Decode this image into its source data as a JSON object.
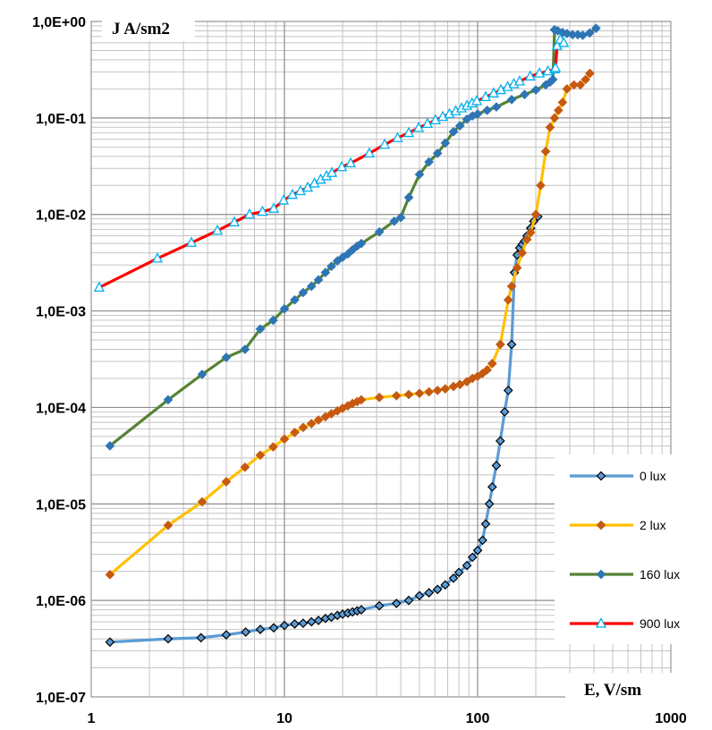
{
  "chart_data": {
    "type": "line",
    "x_scale": "log",
    "y_scale": "log",
    "xlim": [
      1,
      1000
    ],
    "ylim": [
      1e-07,
      1
    ],
    "x_ticks": [
      1,
      10,
      100,
      1000
    ],
    "x_tick_labels": [
      "1",
      "10",
      "100",
      "1000"
    ],
    "y_ticks": [
      1e-07,
      1e-06,
      1e-05,
      0.0001,
      0.001,
      0.01,
      0.1,
      1
    ],
    "y_tick_labels": [
      "1,0E-07",
      "1,0E-06",
      "1,0E-05",
      "1,0E-04",
      "1,0E-03",
      "1,0E-02",
      "1,0E-01",
      "1,0E+00"
    ],
    "xlabel": "E, V/sm",
    "ylabel": "J A/sm2",
    "grid": true,
    "legend_position": "bottom-right",
    "series": [
      {
        "name": "0 lux",
        "color": "#5b9bd5",
        "marker": "diamond",
        "marker_fill": "#5b9bd5",
        "marker_stroke": "#000000",
        "points": [
          [
            1.25,
            3.7e-07
          ],
          [
            2.5,
            4e-07
          ],
          [
            3.7,
            4.1e-07
          ],
          [
            5.0,
            4.4e-07
          ],
          [
            6.3,
            4.7e-07
          ],
          [
            7.5,
            5e-07
          ],
          [
            8.8,
            5.2e-07
          ],
          [
            10,
            5.5e-07
          ],
          [
            11.3,
            5.7e-07
          ],
          [
            12.5,
            5.8e-07
          ],
          [
            13.8,
            6e-07
          ],
          [
            15,
            6.2e-07
          ],
          [
            16.3,
            6.5e-07
          ],
          [
            17.5,
            6.7e-07
          ],
          [
            18.8,
            7e-07
          ],
          [
            20,
            7.2e-07
          ],
          [
            21.3,
            7.4e-07
          ],
          [
            22.5,
            7.6e-07
          ],
          [
            23.8,
            7.8e-07
          ],
          [
            25,
            8e-07
          ],
          [
            31,
            8.8e-07
          ],
          [
            38,
            9.3e-07
          ],
          [
            44,
            1e-06
          ],
          [
            50,
            1.12e-06
          ],
          [
            56,
            1.2e-06
          ],
          [
            62,
            1.3e-06
          ],
          [
            68,
            1.45e-06
          ],
          [
            75,
            1.7e-06
          ],
          [
            80,
            1.95e-06
          ],
          [
            88,
            2.3e-06
          ],
          [
            94,
            2.8e-06
          ],
          [
            100,
            3.3e-06
          ],
          [
            106,
            4.2e-06
          ],
          [
            110,
            6.2e-06
          ],
          [
            115,
            1e-05
          ],
          [
            119,
            1.5e-05
          ],
          [
            125,
            2.5e-05
          ],
          [
            131,
            4.5e-05
          ],
          [
            138,
            9e-05
          ],
          [
            144,
            0.00015
          ],
          [
            150,
            0.00045
          ],
          [
            155,
            0.0025
          ],
          [
            160,
            0.0038
          ],
          [
            165,
            0.0045
          ],
          [
            170,
            0.0049
          ],
          [
            175,
            0.0053
          ],
          [
            180,
            0.006
          ],
          [
            188,
            0.0072
          ],
          [
            195,
            0.0085
          ],
          [
            205,
            0.0095
          ]
        ]
      },
      {
        "name": "2 lux",
        "color": "#ffc000",
        "marker": "diamond",
        "marker_fill": "#c55a11",
        "marker_stroke": "#c55a11",
        "points": [
          [
            1.25,
            1.85e-06
          ],
          [
            2.5,
            6e-06
          ],
          [
            3.75,
            1.05e-05
          ],
          [
            5.0,
            1.7e-05
          ],
          [
            6.25,
            2.4e-05
          ],
          [
            7.5,
            3.2e-05
          ],
          [
            8.75,
            3.9e-05
          ],
          [
            10,
            4.7e-05
          ],
          [
            11.3,
            5.5e-05
          ],
          [
            12.5,
            6.2e-05
          ],
          [
            13.8,
            6.8e-05
          ],
          [
            15,
            7.4e-05
          ],
          [
            16.3,
            8e-05
          ],
          [
            17.5,
            8.6e-05
          ],
          [
            18.8,
            9.2e-05
          ],
          [
            20,
            9.8e-05
          ],
          [
            21.3,
            0.000104
          ],
          [
            22.5,
            0.00011
          ],
          [
            23.8,
            0.000115
          ],
          [
            25,
            0.00012
          ],
          [
            31,
            0.000127
          ],
          [
            38,
            0.000132
          ],
          [
            44,
            0.000136
          ],
          [
            50,
            0.00014
          ],
          [
            56,
            0.000145
          ],
          [
            62,
            0.00015
          ],
          [
            68,
            0.000156
          ],
          [
            75,
            0.000165
          ],
          [
            81,
            0.000173
          ],
          [
            88,
            0.000185
          ],
          [
            94,
            0.0002
          ],
          [
            100,
            0.00021
          ],
          [
            106,
            0.000225
          ],
          [
            112,
            0.000245
          ],
          [
            119,
            0.000285
          ],
          [
            131,
            0.00045
          ],
          [
            144,
            0.0013
          ],
          [
            150,
            0.0018
          ],
          [
            160,
            0.0028
          ],
          [
            170,
            0.004
          ],
          [
            180,
            0.0055
          ],
          [
            188,
            0.0065
          ],
          [
            200,
            0.01
          ],
          [
            212,
            0.02
          ],
          [
            225,
            0.045
          ],
          [
            237,
            0.08
          ],
          [
            250,
            0.1
          ],
          [
            262,
            0.12
          ],
          [
            275,
            0.145
          ],
          [
            290,
            0.2
          ],
          [
            315,
            0.22
          ],
          [
            340,
            0.22
          ],
          [
            362,
            0.25
          ],
          [
            381,
            0.29
          ]
        ]
      },
      {
        "name": "160 lux",
        "color": "#548235",
        "marker": "diamond",
        "marker_fill": "#2e75b6",
        "marker_stroke": "#2e75b6",
        "points": [
          [
            1.25,
            4e-05
          ],
          [
            2.5,
            0.00012
          ],
          [
            3.75,
            0.00022
          ],
          [
            5.0,
            0.00033
          ],
          [
            6.25,
            0.0004
          ],
          [
            7.5,
            0.00065
          ],
          [
            8.75,
            0.0008
          ],
          [
            10,
            0.00105
          ],
          [
            11.3,
            0.0013
          ],
          [
            12.5,
            0.00155
          ],
          [
            13.8,
            0.0018
          ],
          [
            15,
            0.0021
          ],
          [
            16.3,
            0.0025
          ],
          [
            17.5,
            0.0029
          ],
          [
            18.8,
            0.0033
          ],
          [
            20,
            0.0036
          ],
          [
            21.3,
            0.0039
          ],
          [
            22.5,
            0.0043
          ],
          [
            23.8,
            0.0047
          ],
          [
            25,
            0.005
          ],
          [
            31,
            0.0066
          ],
          [
            37,
            0.0085
          ],
          [
            40,
            0.0093
          ],
          [
            44,
            0.015
          ],
          [
            50,
            0.026
          ],
          [
            56,
            0.035
          ],
          [
            62,
            0.043
          ],
          [
            68,
            0.055
          ],
          [
            75,
            0.072
          ],
          [
            81,
            0.083
          ],
          [
            88,
            0.097
          ],
          [
            94,
            0.105
          ],
          [
            100,
            0.11
          ],
          [
            112,
            0.12
          ],
          [
            125,
            0.13
          ],
          [
            150,
            0.155
          ],
          [
            175,
            0.175
          ],
          [
            200,
            0.195
          ],
          [
            225,
            0.22
          ],
          [
            237,
            0.235
          ],
          [
            245,
            0.25
          ],
          [
            250,
            0.82
          ],
          [
            260,
            0.8
          ],
          [
            275,
            0.77
          ],
          [
            290,
            0.75
          ],
          [
            310,
            0.73
          ],
          [
            330,
            0.73
          ],
          [
            350,
            0.72
          ],
          [
            380,
            0.76
          ],
          [
            410,
            0.85
          ]
        ]
      },
      {
        "name": "900 lux",
        "color": "#ff0000",
        "marker": "triangle",
        "marker_fill": "#ffffff",
        "marker_stroke": "#00b0f0",
        "points": [
          [
            1.1,
            0.00175
          ],
          [
            2.2,
            0.0035
          ],
          [
            3.3,
            0.0051
          ],
          [
            4.5,
            0.0068
          ],
          [
            5.5,
            0.0083
          ],
          [
            6.6,
            0.01
          ],
          [
            7.7,
            0.0107
          ],
          [
            8.8,
            0.0115
          ],
          [
            9.9,
            0.014
          ],
          [
            11,
            0.016
          ],
          [
            12.1,
            0.0175
          ],
          [
            13.2,
            0.019
          ],
          [
            14.3,
            0.021
          ],
          [
            15.4,
            0.023
          ],
          [
            16.5,
            0.025
          ],
          [
            17.6,
            0.027
          ],
          [
            19.8,
            0.031
          ],
          [
            22,
            0.034
          ],
          [
            27.5,
            0.043
          ],
          [
            33,
            0.053
          ],
          [
            38.5,
            0.062
          ],
          [
            44,
            0.07
          ],
          [
            49.5,
            0.079
          ],
          [
            55,
            0.087
          ],
          [
            60.5,
            0.095
          ],
          [
            66,
            0.103
          ],
          [
            71.5,
            0.11
          ],
          [
            77,
            0.118
          ],
          [
            82.5,
            0.126
          ],
          [
            88,
            0.134
          ],
          [
            93.5,
            0.142
          ],
          [
            99,
            0.15
          ],
          [
            110,
            0.165
          ],
          [
            121,
            0.18
          ],
          [
            132,
            0.195
          ],
          [
            143,
            0.21
          ],
          [
            154,
            0.225
          ],
          [
            165,
            0.24
          ],
          [
            187,
            0.27
          ],
          [
            209,
            0.29
          ],
          [
            231,
            0.305
          ],
          [
            250,
            0.32
          ],
          [
            253,
            0.33
          ],
          [
            258,
            0.56
          ],
          [
            268,
            0.65
          ],
          [
            279,
            0.6
          ]
        ]
      }
    ]
  }
}
